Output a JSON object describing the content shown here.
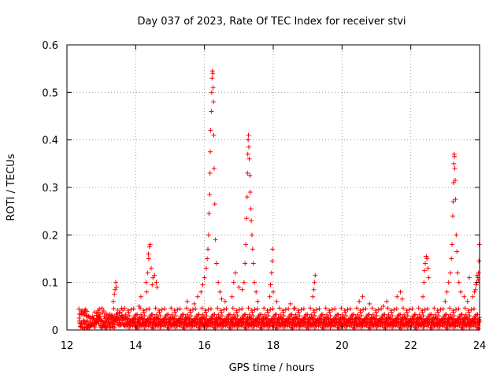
{
  "chart_data": {
    "type": "scatter",
    "title": "Day 037 of 2023, Rate Of TEC Index for receiver stvi",
    "xlabel": "GPS time / hours",
    "ylabel": "ROTI / TECUs",
    "xlim": [
      12,
      24
    ],
    "ylim": [
      0,
      0.6
    ],
    "x_ticks": [
      12,
      14,
      16,
      18,
      20,
      22,
      24
    ],
    "y_ticks": [
      0,
      0.1,
      0.2,
      0.3,
      0.4,
      0.5,
      0.6
    ],
    "x_tick_labels": [
      "12",
      "14",
      "16",
      "18",
      "20",
      "22",
      "24"
    ],
    "y_tick_labels": [
      "0",
      "0.1",
      "0.2",
      "0.3",
      "0.4",
      "0.5",
      "0.6"
    ],
    "grid": true,
    "marker": "+",
    "series_color": "#ff0000",
    "baseline": {
      "x_start": 12.35,
      "x_end": 24.0,
      "typical_min": 0.003,
      "typical_max": 0.035
    },
    "series": [
      {
        "name": "ROTI",
        "points": [
          [
            13.35,
            0.06
          ],
          [
            13.38,
            0.075
          ],
          [
            13.4,
            0.085
          ],
          [
            13.42,
            0.1
          ],
          [
            13.44,
            0.09
          ],
          [
            13.36,
            0.045
          ],
          [
            14.1,
            0.05
          ],
          [
            14.15,
            0.07
          ],
          [
            14.3,
            0.1
          ],
          [
            14.35,
            0.12
          ],
          [
            14.38,
            0.15
          ],
          [
            14.4,
            0.175
          ],
          [
            14.42,
            0.18
          ],
          [
            14.37,
            0.16
          ],
          [
            14.45,
            0.13
          ],
          [
            14.5,
            0.11
          ],
          [
            14.55,
            0.115
          ],
          [
            14.6,
            0.1
          ],
          [
            14.32,
            0.08
          ],
          [
            14.62,
            0.09
          ],
          [
            14.48,
            0.095
          ],
          [
            15.5,
            0.06
          ],
          [
            15.7,
            0.055
          ],
          [
            15.8,
            0.07
          ],
          [
            15.9,
            0.08
          ],
          [
            15.95,
            0.095
          ],
          [
            16.0,
            0.11
          ],
          [
            16.05,
            0.13
          ],
          [
            16.08,
            0.15
          ],
          [
            16.1,
            0.17
          ],
          [
            16.12,
            0.2
          ],
          [
            16.13,
            0.245
          ],
          [
            16.15,
            0.285
          ],
          [
            16.16,
            0.33
          ],
          [
            16.17,
            0.375
          ],
          [
            16.18,
            0.42
          ],
          [
            16.2,
            0.46
          ],
          [
            16.21,
            0.5
          ],
          [
            16.22,
            0.53
          ],
          [
            16.23,
            0.545
          ],
          [
            16.24,
            0.54
          ],
          [
            16.25,
            0.51
          ],
          [
            16.26,
            0.48
          ],
          [
            16.27,
            0.41
          ],
          [
            16.28,
            0.34
          ],
          [
            16.3,
            0.265
          ],
          [
            16.32,
            0.19
          ],
          [
            16.35,
            0.14
          ],
          [
            16.4,
            0.1
          ],
          [
            16.45,
            0.08
          ],
          [
            16.5,
            0.065
          ],
          [
            16.6,
            0.06
          ],
          [
            16.8,
            0.07
          ],
          [
            16.85,
            0.1
          ],
          [
            16.9,
            0.12
          ],
          [
            17.0,
            0.09
          ],
          [
            17.1,
            0.085
          ],
          [
            17.15,
            0.1
          ],
          [
            17.18,
            0.14
          ],
          [
            17.2,
            0.18
          ],
          [
            17.22,
            0.235
          ],
          [
            17.24,
            0.28
          ],
          [
            17.25,
            0.33
          ],
          [
            17.26,
            0.37
          ],
          [
            17.27,
            0.4
          ],
          [
            17.28,
            0.41
          ],
          [
            17.29,
            0.385
          ],
          [
            17.3,
            0.36
          ],
          [
            17.32,
            0.325
          ],
          [
            17.33,
            0.29
          ],
          [
            17.35,
            0.255
          ],
          [
            17.36,
            0.23
          ],
          [
            17.38,
            0.2
          ],
          [
            17.4,
            0.17
          ],
          [
            17.42,
            0.14
          ],
          [
            17.45,
            0.1
          ],
          [
            17.5,
            0.08
          ],
          [
            17.55,
            0.06
          ],
          [
            17.9,
            0.07
          ],
          [
            17.92,
            0.095
          ],
          [
            17.95,
            0.12
          ],
          [
            17.97,
            0.145
          ],
          [
            17.98,
            0.17
          ],
          [
            18.0,
            0.08
          ],
          [
            18.1,
            0.06
          ],
          [
            18.5,
            0.055
          ],
          [
            18.6,
            0.045
          ],
          [
            19.15,
            0.07
          ],
          [
            19.2,
            0.1
          ],
          [
            19.22,
            0.115
          ],
          [
            19.18,
            0.085
          ],
          [
            20.5,
            0.06
          ],
          [
            20.6,
            0.07
          ],
          [
            20.8,
            0.055
          ],
          [
            21.2,
            0.05
          ],
          [
            21.3,
            0.06
          ],
          [
            21.6,
            0.07
          ],
          [
            21.7,
            0.08
          ],
          [
            21.75,
            0.065
          ],
          [
            22.35,
            0.07
          ],
          [
            22.38,
            0.1
          ],
          [
            22.4,
            0.125
          ],
          [
            22.42,
            0.14
          ],
          [
            22.45,
            0.155
          ],
          [
            22.47,
            0.15
          ],
          [
            22.5,
            0.13
          ],
          [
            22.52,
            0.11
          ],
          [
            23.0,
            0.06
          ],
          [
            23.05,
            0.08
          ],
          [
            23.1,
            0.1
          ],
          [
            23.15,
            0.12
          ],
          [
            23.18,
            0.15
          ],
          [
            23.2,
            0.18
          ],
          [
            23.22,
            0.24
          ],
          [
            23.23,
            0.27
          ],
          [
            23.24,
            0.31
          ],
          [
            23.25,
            0.35
          ],
          [
            23.26,
            0.37
          ],
          [
            23.27,
            0.365
          ],
          [
            23.28,
            0.34
          ],
          [
            23.29,
            0.315
          ],
          [
            23.3,
            0.275
          ],
          [
            23.32,
            0.2
          ],
          [
            23.34,
            0.165
          ],
          [
            23.36,
            0.12
          ],
          [
            23.4,
            0.1
          ],
          [
            23.45,
            0.08
          ],
          [
            23.55,
            0.07
          ],
          [
            23.65,
            0.06
          ],
          [
            23.7,
            0.11
          ],
          [
            23.8,
            0.07
          ],
          [
            23.85,
            0.08
          ],
          [
            23.9,
            0.095
          ],
          [
            23.92,
            0.1
          ],
          [
            23.95,
            0.11
          ],
          [
            23.97,
            0.12
          ],
          [
            23.98,
            0.145
          ],
          [
            23.99,
            0.18
          ],
          [
            23.96,
            0.105
          ],
          [
            23.88,
            0.085
          ],
          [
            23.93,
            0.115
          ]
        ]
      }
    ]
  }
}
